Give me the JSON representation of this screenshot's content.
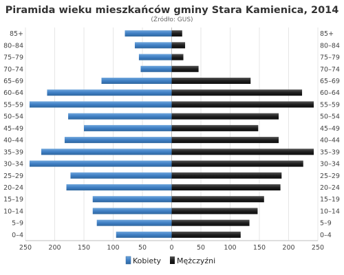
{
  "chart_data": {
    "type": "bar",
    "orientation": "horizontal",
    "title": "Piramida wieku mieszkańców gminy Stara Kamienica, 2014",
    "subtitle": "(Źródło: GUS)",
    "categories": [
      "85+",
      "80–84",
      "75–79",
      "70–74",
      "65–69",
      "60–64",
      "55–59",
      "50–54",
      "45–49",
      "40–44",
      "35–39",
      "30–34",
      "25–29",
      "20–24",
      "15–19",
      "10–14",
      "5–9",
      "0–4"
    ],
    "series": [
      {
        "name": "Kobiety",
        "color": "#4a86c8",
        "values": [
          80,
          63,
          56,
          53,
          120,
          213,
          243,
          177,
          150,
          183,
          223,
          243,
          173,
          180,
          135,
          135,
          128,
          95
        ]
      },
      {
        "name": "Mężczyźni",
        "color": "#222222",
        "values": [
          18,
          23,
          20,
          46,
          135,
          223,
          243,
          183,
          148,
          183,
          243,
          225,
          188,
          186,
          158,
          147,
          133,
          118
        ]
      }
    ],
    "x_ticks": [
      "250",
      "200",
      "150",
      "100",
      "50",
      "0",
      "50",
      "100",
      "150",
      "200",
      "250"
    ],
    "xlim": [
      -250,
      250
    ],
    "grid": true,
    "legend_position": "bottom"
  }
}
